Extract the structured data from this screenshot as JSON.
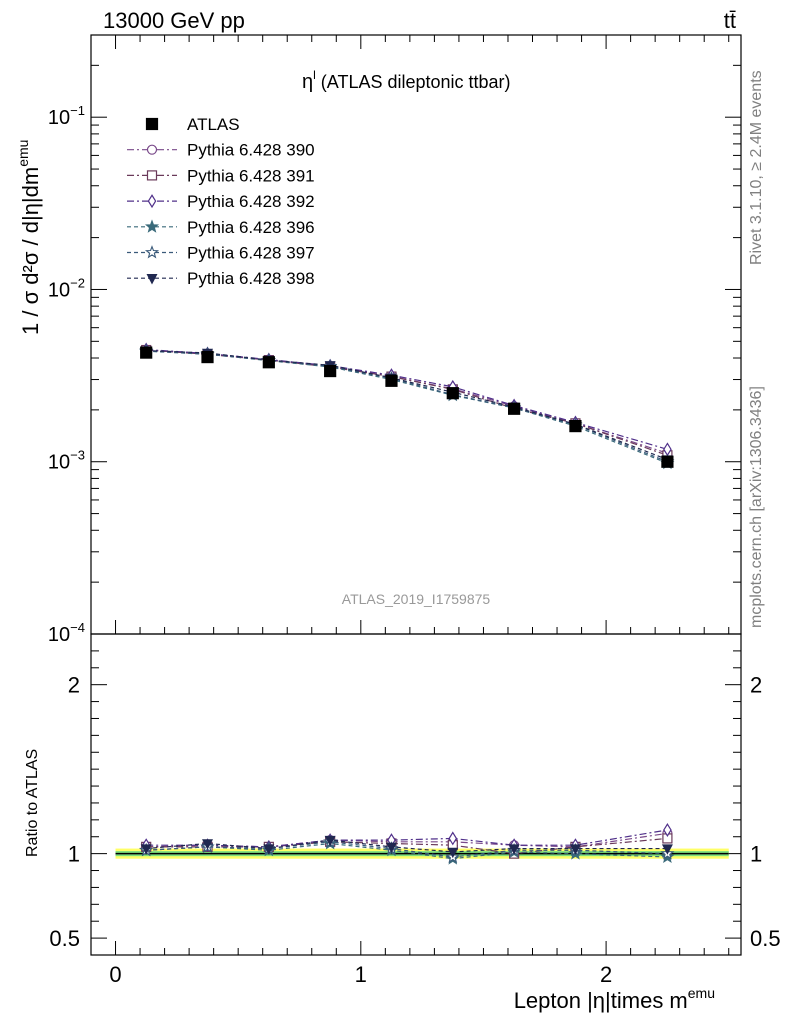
{
  "header": {
    "energy_label": "13000 GeV pp",
    "process_label": "tt̄"
  },
  "plot_title": {
    "symbol": "η",
    "superscript": "l",
    "text": " (ATLAS dileptonic ttbar)"
  },
  "side_labels": {
    "rivet": "Rivet 3.1.10, ≥ 2.4M events",
    "site": "mcplots.cern.ch [arXiv:1306.3436]"
  },
  "analysis_id": "ATLAS_2019_I1759875",
  "axes": {
    "y_main_label": "1 / σ d²σ / d|η|dm",
    "y_main_label_sup": "emu",
    "y_ratio_label": "Ratio to ATLAS",
    "x_label": "Lepton |η|times m",
    "x_label_sup": "emu",
    "x_ticks": [
      "0",
      "1",
      "2"
    ],
    "y_main_ticks": [
      {
        "base": "10",
        "exp": "−1"
      },
      {
        "base": "10",
        "exp": "−2"
      },
      {
        "base": "10",
        "exp": "−3"
      },
      {
        "base": "10",
        "exp": "−4"
      }
    ],
    "y_ratio_ticks": [
      "2",
      "1",
      "0.5"
    ]
  },
  "chart_data": {
    "type": "scatter",
    "xlim": [
      -0.1,
      2.55
    ],
    "main": {
      "ylim": [
        0.0001,
        0.3
      ],
      "yscale": "log"
    },
    "ratio": {
      "ylim": [
        0.4,
        2.3
      ]
    },
    "x": [
      0.125,
      0.375,
      0.625,
      0.875,
      1.125,
      1.375,
      1.625,
      1.875,
      2.25
    ],
    "series": [
      {
        "name": "ATLAS",
        "marker": "square-filled",
        "color": "#000000",
        "dash": "",
        "values": [
          0.0043,
          0.00405,
          0.00378,
          0.00336,
          0.00295,
          0.0025,
          0.00203,
          0.00161,
          0.001
        ],
        "ratio": [
          1,
          1,
          1,
          1,
          1,
          1,
          1,
          1,
          1
        ]
      },
      {
        "name": "Pythia 6.428 390",
        "marker": "circle-open",
        "color": "#7a4a8a",
        "dash": "7 3 2 3",
        "values": [
          0.00445,
          0.00423,
          0.0039,
          0.00358,
          0.00313,
          0.00265,
          0.0021,
          0.00167,
          0.00112
        ],
        "ratio": [
          1.04,
          1.05,
          1.04,
          1.08,
          1.07,
          1.07,
          1.05,
          1.04,
          1.12
        ]
      },
      {
        "name": "Pythia 6.428 391",
        "marker": "square-open",
        "color": "#6a3a5a",
        "dash": "7 3 2 3",
        "values": [
          0.00445,
          0.0042,
          0.00389,
          0.00355,
          0.00312,
          0.00263,
          0.00204,
          0.00167,
          0.00109
        ],
        "ratio": [
          1.04,
          1.04,
          1.04,
          1.07,
          1.06,
          1.05,
          1.0,
          1.04,
          1.09
        ]
      },
      {
        "name": "Pythia 6.428 392",
        "marker": "diamond-open",
        "color": "#50308a",
        "dash": "7 3 2 3",
        "values": [
          0.00448,
          0.00425,
          0.00392,
          0.00361,
          0.00318,
          0.00272,
          0.00212,
          0.00169,
          0.00118
        ],
        "ratio": [
          1.05,
          1.05,
          1.04,
          1.08,
          1.08,
          1.09,
          1.05,
          1.05,
          1.14
        ]
      },
      {
        "name": "Pythia 6.428 396",
        "marker": "star-filled",
        "color": "#3a6a7a",
        "dash": "4 3",
        "values": [
          0.00438,
          0.00422,
          0.00386,
          0.00355,
          0.003,
          0.00243,
          0.00205,
          0.00161,
          0.00098
        ],
        "ratio": [
          1.02,
          1.04,
          1.02,
          1.06,
          1.02,
          0.97,
          1.01,
          1.0,
          0.98
        ]
      },
      {
        "name": "Pythia 6.428 397",
        "marker": "star-open",
        "color": "#3a5a7a",
        "dash": "4 3",
        "values": [
          0.0044,
          0.0042,
          0.00388,
          0.00358,
          0.00305,
          0.00245,
          0.00206,
          0.00164,
          0.001
        ],
        "ratio": [
          1.02,
          1.04,
          1.03,
          1.07,
          1.03,
          0.98,
          1.02,
          1.02,
          1.0
        ]
      },
      {
        "name": "Pythia 6.428 398",
        "marker": "triangle-down-filled",
        "color": "#202850",
        "dash": "4 3",
        "values": [
          0.00442,
          0.00428,
          0.00389,
          0.00363,
          0.00307,
          0.00253,
          0.00208,
          0.00165,
          0.00103
        ],
        "ratio": [
          1.03,
          1.06,
          1.03,
          1.08,
          1.04,
          1.01,
          1.03,
          1.03,
          1.03
        ]
      }
    ],
    "ratio_band": {
      "inner": [
        0.985,
        1.015
      ],
      "outer": [
        0.97,
        1.03
      ],
      "inner_color": "#7fe07f",
      "outer_color": "#ffff66"
    }
  }
}
